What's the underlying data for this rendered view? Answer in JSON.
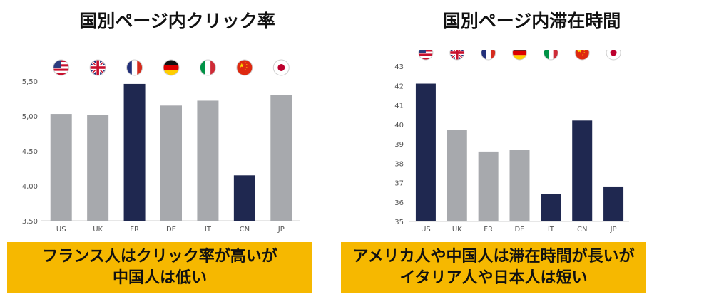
{
  "charts": [
    {
      "title": "国別ページ内クリック率",
      "caption_lines": [
        "フランス人はクリック率が高いが",
        "中国人は低い"
      ],
      "chart_data": {
        "type": "bar",
        "title": "国別ページ内クリック率",
        "categories": [
          "US",
          "UK",
          "FR",
          "DE",
          "IT",
          "CN",
          "JP"
        ],
        "values": [
          5.03,
          5.02,
          5.46,
          5.15,
          5.22,
          4.15,
          5.3
        ],
        "ylim": [
          3.5,
          5.5
        ],
        "yticks": [
          "3,50",
          "4,00",
          "4,50",
          "5,00",
          "5,50"
        ],
        "ytick_values": [
          3.5,
          4.0,
          4.5,
          5.0,
          5.5
        ],
        "highlight": [
          "FR",
          "CN"
        ],
        "flags": [
          "us-flag-icon",
          "uk-flag-icon",
          "fr-flag-icon",
          "de-flag-icon",
          "it-flag-icon",
          "cn-flag-icon",
          "jp-flag-icon"
        ],
        "colors": {
          "normal": "#a7a9ad",
          "highlight": "#1f2850"
        },
        "grid": false
      }
    },
    {
      "title": "国別ページ内滞在時間",
      "caption_lines": [
        "アメリカ人や中国人は滞在時間が長いが",
        "イタリア人や日本人は短い"
      ],
      "chart_data": {
        "type": "bar",
        "title": "国別ページ内滞在時間",
        "categories": [
          "US",
          "UK",
          "FR",
          "DE",
          "IT",
          "CN",
          "JP"
        ],
        "values": [
          42.1,
          39.7,
          38.6,
          38.7,
          36.4,
          40.2,
          36.8
        ],
        "ylim": [
          35,
          43
        ],
        "yticks": [
          "35",
          "36",
          "37",
          "38",
          "39",
          "40",
          "41",
          "42",
          "43"
        ],
        "ytick_values": [
          35,
          36,
          37,
          38,
          39,
          40,
          41,
          42,
          43
        ],
        "highlight": [
          "US",
          "IT",
          "CN",
          "JP"
        ],
        "flags": [
          "us-flag-icon",
          "uk-flag-icon",
          "fr-flag-icon",
          "de-flag-icon",
          "it-flag-icon",
          "cn-flag-icon",
          "jp-flag-icon"
        ],
        "colors": {
          "normal": "#a7a9ad",
          "highlight": "#1f2850"
        },
        "grid": false
      }
    }
  ]
}
